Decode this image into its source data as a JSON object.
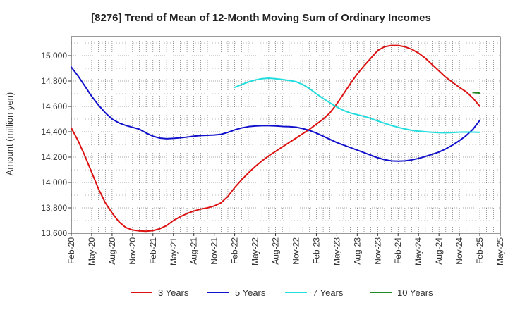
{
  "chart_data": {
    "type": "line",
    "title": "[8276]  Trend of Mean of 12-Month Moving Sum of Ordinary Incomes",
    "xlabel": "",
    "ylabel": "Amount (million yen)",
    "ylim": [
      13600,
      15150
    ],
    "yticks": [
      13600,
      13800,
      14000,
      14200,
      14400,
      14600,
      14800,
      15000
    ],
    "ytick_labels": [
      "13,600",
      "13,800",
      "14,000",
      "14,200",
      "14,400",
      "14,600",
      "14,800",
      "15,000"
    ],
    "x_tick_labels": [
      "Feb-20",
      "May-20",
      "Aug-20",
      "Nov-20",
      "Feb-21",
      "May-21",
      "Aug-21",
      "Nov-21",
      "Feb-22",
      "May-22",
      "Aug-22",
      "Nov-22",
      "Feb-23",
      "May-23",
      "Aug-23",
      "Nov-23",
      "Feb-24",
      "May-24",
      "Aug-24",
      "Nov-24",
      "Feb-25",
      "May-25"
    ],
    "x_unit": "month index from Feb-20",
    "grid": true,
    "legend_position": "bottom",
    "series": [
      {
        "name": "3 Years",
        "color": "#dd1111",
        "x": [
          0,
          1,
          2,
          3,
          4,
          5,
          6,
          7,
          8,
          9,
          10,
          11,
          12,
          13,
          14,
          15,
          16,
          17,
          18,
          19,
          20,
          21,
          22,
          23,
          24,
          25,
          26,
          27,
          28,
          29,
          30,
          31,
          32,
          33,
          34,
          35,
          36,
          37,
          38,
          39,
          40,
          41,
          42,
          43,
          44,
          45,
          46,
          47,
          48,
          49,
          50,
          51,
          52,
          53,
          54,
          55,
          56,
          57,
          58,
          59,
          60
        ],
        "values": [
          14430,
          14330,
          14210,
          14080,
          13950,
          13840,
          13760,
          13690,
          13645,
          13625,
          13618,
          13615,
          13620,
          13635,
          13660,
          13700,
          13730,
          13755,
          13775,
          13790,
          13800,
          13815,
          13840,
          13890,
          13960,
          14020,
          14075,
          14125,
          14170,
          14210,
          14245,
          14280,
          14315,
          14350,
          14385,
          14420,
          14460,
          14500,
          14550,
          14620,
          14700,
          14780,
          14855,
          14920,
          14980,
          15040,
          15070,
          15080,
          15080,
          15070,
          15050,
          15020,
          14980,
          14930,
          14880,
          14830,
          14790,
          14750,
          14715,
          14665,
          14600
        ]
      },
      {
        "name": "5 Years",
        "color": "#1111cc",
        "x": [
          0,
          1,
          2,
          3,
          4,
          5,
          6,
          7,
          8,
          9,
          10,
          11,
          12,
          13,
          14,
          15,
          16,
          17,
          18,
          19,
          20,
          21,
          22,
          23,
          24,
          25,
          26,
          27,
          28,
          29,
          30,
          31,
          32,
          33,
          34,
          35,
          36,
          37,
          38,
          39,
          40,
          41,
          42,
          43,
          44,
          45,
          46,
          47,
          48,
          49,
          50,
          51,
          52,
          53,
          54,
          55,
          56,
          57,
          58,
          59,
          60
        ],
        "values": [
          14910,
          14840,
          14760,
          14680,
          14610,
          14550,
          14500,
          14470,
          14450,
          14435,
          14420,
          14390,
          14365,
          14350,
          14345,
          14348,
          14352,
          14358,
          14365,
          14370,
          14372,
          14374,
          14380,
          14395,
          14415,
          14430,
          14440,
          14445,
          14448,
          14448,
          14446,
          14442,
          14440,
          14436,
          14425,
          14410,
          14390,
          14365,
          14340,
          14315,
          14295,
          14275,
          14255,
          14235,
          14215,
          14195,
          14180,
          14170,
          14168,
          14170,
          14178,
          14190,
          14205,
          14222,
          14240,
          14265,
          14295,
          14330,
          14370,
          14420,
          14490
        ]
      },
      {
        "name": "7 Years",
        "color": "#22dddd",
        "x": [
          24,
          25,
          26,
          27,
          28,
          29,
          30,
          31,
          32,
          33,
          34,
          35,
          36,
          37,
          38,
          39,
          40,
          41,
          42,
          43,
          44,
          45,
          46,
          47,
          48,
          49,
          50,
          51,
          52,
          53,
          54,
          55,
          56,
          57,
          58,
          59,
          60
        ],
        "values": [
          14750,
          14772,
          14792,
          14808,
          14818,
          14822,
          14818,
          14812,
          14804,
          14795,
          14772,
          14740,
          14700,
          14662,
          14628,
          14595,
          14568,
          14548,
          14535,
          14522,
          14505,
          14485,
          14467,
          14450,
          14435,
          14422,
          14412,
          14405,
          14400,
          14396,
          14393,
          14392,
          14394,
          14397,
          14398,
          14397,
          14396
        ]
      },
      {
        "name": "10 Years",
        "color": "#228822",
        "x": [
          59,
          60
        ],
        "values": [
          14710,
          14705
        ]
      }
    ]
  }
}
